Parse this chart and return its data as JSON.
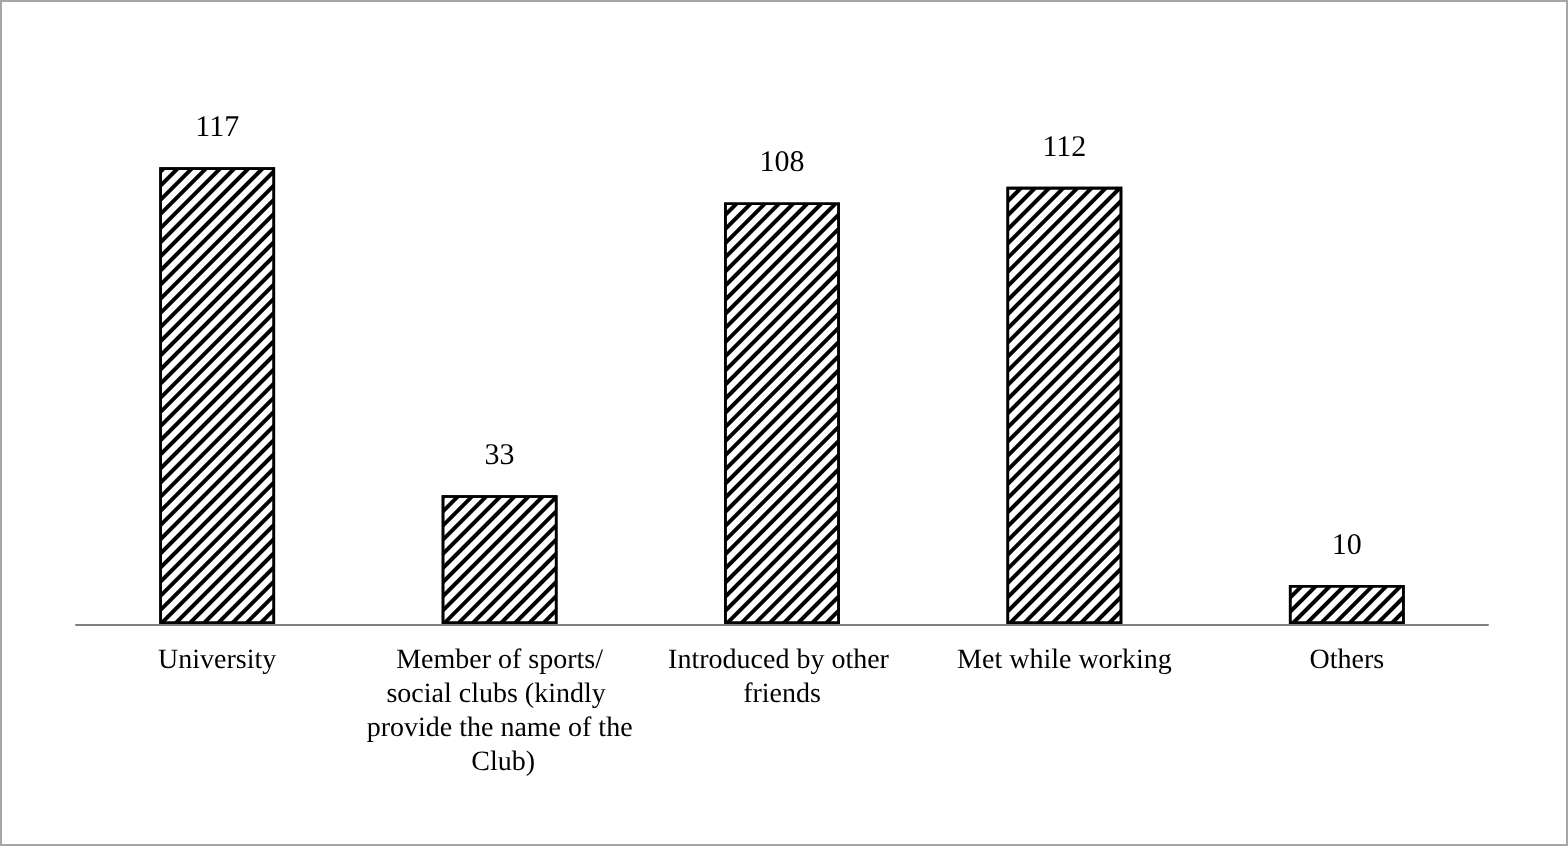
{
  "chart_data": {
    "type": "bar",
    "categories": [
      "University",
      "Member of sports/social clubs (kindly provide the name of the Club)",
      "Introduced by other friends",
      "Met while working",
      "Others"
    ],
    "values": [
      117,
      33,
      108,
      112,
      10
    ],
    "color": "#000000",
    "data_labels": true
  }
}
